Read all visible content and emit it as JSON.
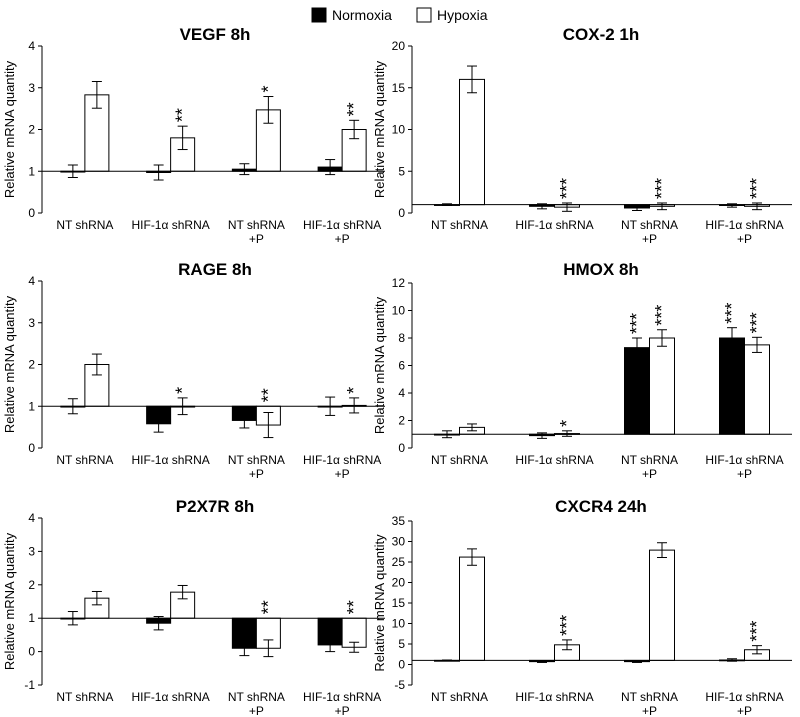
{
  "legend": {
    "items": [
      {
        "label": "Normoxia",
        "color": "#000000"
      },
      {
        "label": "Hypoxia",
        "color": "#ffffff"
      }
    ]
  },
  "chart_data": [
    {
      "type": "bar",
      "title": "VEGF 8h",
      "ylabel": "Relative mRNA quantity",
      "ylim": [
        0,
        4
      ],
      "yticks": [
        0,
        1,
        2,
        3,
        4
      ],
      "baseline": 1,
      "categories": [
        [
          "NT shRNA"
        ],
        [
          "HIF-1α shRNA"
        ],
        [
          "NT shRNA",
          "+P"
        ],
        [
          "HIF-1α shRNA",
          "+P"
        ]
      ],
      "series": [
        {
          "name": "Normoxia",
          "values": [
            1.0,
            0.97,
            1.05,
            1.1
          ],
          "errors": [
            0.15,
            0.18,
            0.13,
            0.18
          ]
        },
        {
          "name": "Hypoxia",
          "values": [
            2.83,
            1.8,
            2.47,
            2.0
          ],
          "errors": [
            0.32,
            0.28,
            0.32,
            0.22
          ]
        }
      ],
      "annotations": [
        "",
        "**",
        "*",
        "**"
      ]
    },
    {
      "type": "bar",
      "title": "COX-2 1h",
      "ylabel": "Relative mRNA quantity",
      "ylim": [
        0,
        20
      ],
      "yticks": [
        0,
        5,
        10,
        15,
        20
      ],
      "baseline": 1,
      "categories": [
        [
          "NT shRNA"
        ],
        [
          "HIF-1α shRNA"
        ],
        [
          "NT shRNA",
          "+P"
        ],
        [
          "HIF-1α shRNA",
          "+P"
        ]
      ],
      "series": [
        {
          "name": "Normoxia",
          "values": [
            1.0,
            0.8,
            0.6,
            0.9
          ],
          "errors": [
            0.1,
            0.3,
            0.3,
            0.2
          ]
        },
        {
          "name": "Hypoxia",
          "values": [
            16.0,
            0.7,
            0.8,
            0.8
          ],
          "errors": [
            1.6,
            0.5,
            0.4,
            0.4
          ]
        }
      ],
      "annotations": [
        "",
        "***",
        "***",
        "***"
      ]
    },
    {
      "type": "bar",
      "title": "RAGE 8h",
      "ylabel": "Relative mRNA quantity",
      "ylim": [
        0,
        4
      ],
      "yticks": [
        0,
        1,
        2,
        3,
        4
      ],
      "baseline": 1,
      "categories": [
        [
          "NT shRNA"
        ],
        [
          "HIF-1α shRNA"
        ],
        [
          "NT shRNA",
          "+P"
        ],
        [
          "HIF-1α shRNA",
          "+P"
        ]
      ],
      "series": [
        {
          "name": "Normoxia",
          "values": [
            1.0,
            0.58,
            0.66,
            1.0
          ],
          "errors": [
            0.18,
            0.2,
            0.18,
            0.22
          ]
        },
        {
          "name": "Hypoxia",
          "values": [
            2.0,
            1.0,
            0.55,
            1.02
          ],
          "errors": [
            0.25,
            0.2,
            0.3,
            0.18
          ]
        }
      ],
      "annotations": [
        "",
        "*",
        "**",
        "*"
      ]
    },
    {
      "type": "bar",
      "title": "HMOX 8h",
      "ylabel": "Relative mRNA quantity",
      "ylim": [
        0,
        12
      ],
      "yticks": [
        0,
        2,
        4,
        6,
        8,
        10,
        12
      ],
      "baseline": 1,
      "categories": [
        [
          "NT shRNA"
        ],
        [
          "HIF-1α shRNA"
        ],
        [
          "NT shRNA",
          "+P"
        ],
        [
          "HIF-1α shRNA",
          "+P"
        ]
      ],
      "series": [
        {
          "name": "Normoxia",
          "values": [
            1.0,
            0.9,
            7.3,
            8.0
          ],
          "errors": [
            0.25,
            0.2,
            0.7,
            0.75
          ]
        },
        {
          "name": "Hypoxia",
          "values": [
            1.5,
            1.05,
            8.0,
            7.5
          ],
          "errors": [
            0.25,
            0.2,
            0.6,
            0.55
          ]
        }
      ],
      "annotations_normoxia": [
        "",
        "",
        "***",
        "***"
      ],
      "annotations": [
        "",
        "*",
        "***",
        "***"
      ]
    },
    {
      "type": "bar",
      "title": "P2X7R 8h",
      "ylabel": "Relative mRNA quantity",
      "ylim": [
        -1,
        4
      ],
      "yticks": [
        -1,
        0,
        1,
        2,
        3,
        4
      ],
      "baseline": 1,
      "categories": [
        [
          "NT shRNA"
        ],
        [
          "HIF-1α shRNA"
        ],
        [
          "NT shRNA",
          "+P"
        ],
        [
          "HIF-1α shRNA",
          "+P"
        ]
      ],
      "series": [
        {
          "name": "Normoxia",
          "values": [
            1.0,
            0.85,
            0.1,
            0.2
          ],
          "errors": [
            0.2,
            0.2,
            0.22,
            0.2
          ]
        },
        {
          "name": "Hypoxia",
          "values": [
            1.6,
            1.78,
            0.1,
            0.13
          ],
          "errors": [
            0.2,
            0.2,
            0.25,
            0.15
          ]
        }
      ],
      "annotations": [
        "",
        "",
        "**",
        "**"
      ]
    },
    {
      "type": "bar",
      "title": "CXCR4 24h",
      "ylabel": "Relative mRNA quantity",
      "ylim": [
        -5,
        35
      ],
      "yticks": [
        -5,
        0,
        5,
        10,
        15,
        20,
        25,
        30,
        35
      ],
      "baseline": 1,
      "categories": [
        [
          "NT shRNA"
        ],
        [
          "HIF-1α shRNA"
        ],
        [
          "NT shRNA",
          "+P"
        ],
        [
          "HIF-1α shRNA",
          "+P"
        ]
      ],
      "series": [
        {
          "name": "Normoxia",
          "values": [
            1.0,
            0.7,
            0.7,
            1.1
          ],
          "errors": [
            0.1,
            0.2,
            0.2,
            0.3
          ]
        },
        {
          "name": "Hypoxia",
          "values": [
            26.2,
            4.8,
            27.9,
            3.6
          ],
          "errors": [
            2.0,
            1.2,
            1.8,
            1.0
          ]
        }
      ],
      "annotations": [
        "",
        "***",
        "",
        "***"
      ]
    }
  ]
}
